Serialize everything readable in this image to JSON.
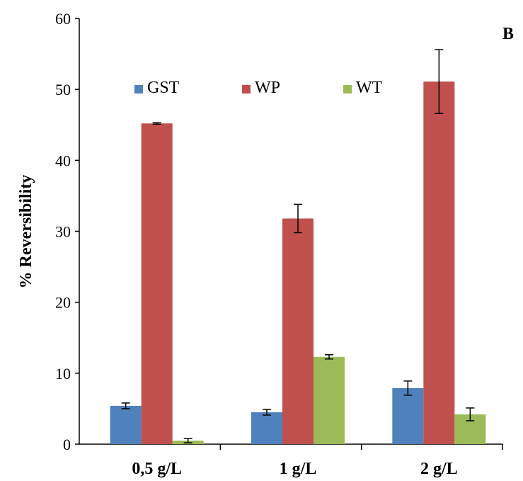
{
  "chart_data": {
    "type": "bar",
    "panel_label": "B",
    "ylabel": "% Reversibility",
    "xlabel": "",
    "ylim": [
      0,
      60
    ],
    "yticks": [
      0,
      10,
      20,
      30,
      40,
      50,
      60
    ],
    "categories": [
      "0,5 g/L",
      "1 g/L",
      "2 g/L"
    ],
    "series": [
      {
        "name": "GST",
        "color": "#4F81BD",
        "values": [
          5.4,
          4.5,
          7.9
        ],
        "errors": [
          0.4,
          0.4,
          1.0
        ]
      },
      {
        "name": "WP",
        "color": "#C0504D",
        "values": [
          45.2,
          31.8,
          51.1
        ],
        "errors": [
          0.1,
          2.0,
          4.5
        ]
      },
      {
        "name": "WT",
        "color": "#9BBB59",
        "values": [
          0.5,
          12.3,
          4.2
        ],
        "errors": [
          0.3,
          0.3,
          0.9
        ]
      }
    ],
    "legend_position": "top",
    "grid": false
  }
}
